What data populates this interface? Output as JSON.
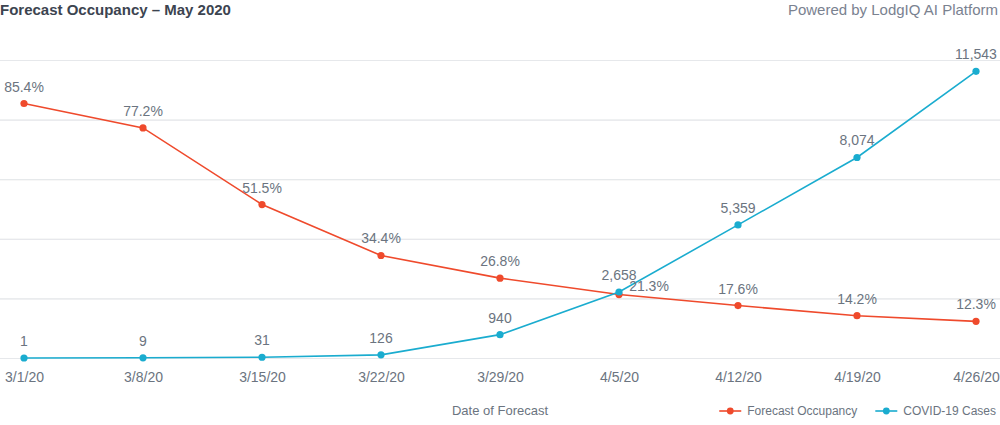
{
  "chart_data": {
    "type": "line",
    "title": "Forecast Occupancy – May 2020",
    "subtitle": "Powered by LodgIQ AI Platform",
    "x_label": "Date of Forecast",
    "categories": [
      "3/1/20",
      "3/8/20",
      "3/15/20",
      "3/22/20",
      "3/29/20",
      "4/5/20",
      "4/12/20",
      "4/19/20",
      "4/26/20"
    ],
    "series": [
      {
        "name": "Forecast Occupancy",
        "color": "#ef4a2c",
        "marker": "circle",
        "line_style": "solid",
        "values": [
          85.4,
          77.2,
          51.5,
          34.4,
          26.8,
          21.3,
          17.6,
          14.2,
          12.3
        ],
        "value_labels": [
          "85.4%",
          "77.2%",
          "51.5%",
          "34.4%",
          "26.8%",
          "21.3%",
          "17.6%",
          "14.2%",
          "12.3%"
        ]
      },
      {
        "name": "COVID-19 Cases",
        "color": "#1aaccf",
        "marker": "circle",
        "line_style": "solid",
        "axis": "y2",
        "values": [
          1,
          9,
          31,
          126,
          940,
          2658,
          5359,
          8074,
          11543
        ],
        "value_labels": [
          "1",
          "9",
          "31",
          "126",
          "940",
          "2,658",
          "5,359",
          "8,074",
          "11,543"
        ]
      }
    ],
    "ylim": [
      0,
      100
    ],
    "yticks": [
      0,
      20,
      40,
      60,
      80,
      100
    ],
    "y2lim": [
      0,
      12000
    ],
    "y2ticks": [
      0,
      2400,
      4800,
      7200,
      9600,
      12000
    ],
    "grid": true,
    "legend": "bottom-right",
    "data_labels": true,
    "tick_labels": false
  }
}
